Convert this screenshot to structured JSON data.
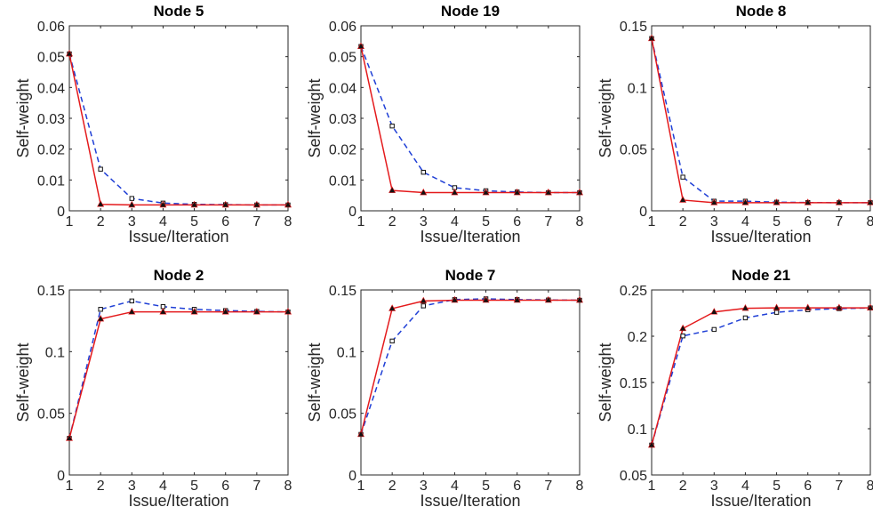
{
  "chart_data": [
    {
      "type": "line",
      "title": "Node 5",
      "xlabel": "Issue/Iteration",
      "ylabel": "Self-weight",
      "x": [
        1,
        2,
        3,
        4,
        5,
        6,
        7,
        8
      ],
      "xlim": [
        1,
        8
      ],
      "ylim": [
        0,
        0.06
      ],
      "yticks": [
        0,
        0.01,
        0.02,
        0.03,
        0.04,
        0.05,
        0.06
      ],
      "ytick_labels": [
        "0",
        "0.01",
        "0.02",
        "0.03",
        "0.04",
        "0.05",
        "0.06"
      ],
      "series": [
        {
          "color": "#e41a1c",
          "line": "solid",
          "marker": "triangle",
          "values": [
            0.0509,
            0.0021,
            0.0019,
            0.0019,
            0.0019,
            0.0019,
            0.0019,
            0.0019
          ]
        },
        {
          "color": "#1f3fd6",
          "line": "dashed",
          "marker": "square",
          "values": [
            0.0509,
            0.0135,
            0.004,
            0.0025,
            0.0021,
            0.002,
            0.0019,
            0.0019
          ]
        }
      ]
    },
    {
      "type": "line",
      "title": "Node 19",
      "xlabel": "Issue/Iteration",
      "ylabel": "Self-weight",
      "x": [
        1,
        2,
        3,
        4,
        5,
        6,
        7,
        8
      ],
      "xlim": [
        1,
        8
      ],
      "ylim": [
        0,
        0.06
      ],
      "yticks": [
        0,
        0.01,
        0.02,
        0.03,
        0.04,
        0.05,
        0.06
      ],
      "ytick_labels": [
        "0",
        "0.01",
        "0.02",
        "0.03",
        "0.04",
        "0.05",
        "0.06"
      ],
      "series": [
        {
          "color": "#e41a1c",
          "line": "solid",
          "marker": "triangle",
          "values": [
            0.0533,
            0.0066,
            0.0059,
            0.0059,
            0.0059,
            0.0059,
            0.0059,
            0.0059
          ]
        },
        {
          "color": "#1f3fd6",
          "line": "dashed",
          "marker": "square",
          "values": [
            0.0533,
            0.0275,
            0.0125,
            0.0075,
            0.0065,
            0.0061,
            0.0059,
            0.0059
          ]
        }
      ]
    },
    {
      "type": "line",
      "title": "Node 8",
      "xlabel": "Issue/Iteration",
      "ylabel": "Self-weight",
      "x": [
        1,
        2,
        3,
        4,
        5,
        6,
        7,
        8
      ],
      "xlim": [
        1,
        8
      ],
      "ylim": [
        0,
        0.15
      ],
      "yticks": [
        0,
        0.05,
        0.1,
        0.15
      ],
      "ytick_labels": [
        "0",
        "0.05",
        "0.1",
        "0.15"
      ],
      "series": [
        {
          "color": "#e41a1c",
          "line": "solid",
          "marker": "triangle",
          "values": [
            0.1397,
            0.0087,
            0.0066,
            0.0066,
            0.0066,
            0.0066,
            0.0066,
            0.0066
          ]
        },
        {
          "color": "#1f3fd6",
          "line": "dashed",
          "marker": "square",
          "values": [
            0.1397,
            0.0273,
            0.0078,
            0.0078,
            0.007,
            0.0067,
            0.0066,
            0.0066
          ]
        }
      ]
    },
    {
      "type": "line",
      "title": "Node 2",
      "xlabel": "Issue/Iteration",
      "ylabel": "Self-weight",
      "x": [
        1,
        2,
        3,
        4,
        5,
        6,
        7,
        8
      ],
      "xlim": [
        1,
        8
      ],
      "ylim": [
        0,
        0.15
      ],
      "yticks": [
        0,
        0.05,
        0.1,
        0.15
      ],
      "ytick_labels": [
        "0",
        "0.05",
        "0.1",
        "0.15"
      ],
      "series": [
        {
          "color": "#e41a1c",
          "line": "solid",
          "marker": "triangle",
          "values": [
            0.0297,
            0.1265,
            0.1322,
            0.1322,
            0.1322,
            0.1322,
            0.1322,
            0.1322
          ]
        },
        {
          "color": "#1f3fd6",
          "line": "dashed",
          "marker": "square",
          "values": [
            0.0297,
            0.1343,
            0.1411,
            0.1365,
            0.1343,
            0.1333,
            0.1326,
            0.1322
          ]
        }
      ]
    },
    {
      "type": "line",
      "title": "Node 7",
      "xlabel": "Issue/Iteration",
      "ylabel": "Self-weight",
      "x": [
        1,
        2,
        3,
        4,
        5,
        6,
        7,
        8
      ],
      "xlim": [
        1,
        8
      ],
      "ylim": [
        0,
        0.15
      ],
      "yticks": [
        0,
        0.05,
        0.1,
        0.15
      ],
      "ytick_labels": [
        "0",
        "0.05",
        "0.1",
        "0.15"
      ],
      "series": [
        {
          "color": "#e41a1c",
          "line": "solid",
          "marker": "triangle",
          "values": [
            0.0329,
            0.1349,
            0.1411,
            0.1417,
            0.1417,
            0.1417,
            0.1417,
            0.1417
          ]
        },
        {
          "color": "#1f3fd6",
          "line": "dashed",
          "marker": "square",
          "values": [
            0.0329,
            0.1086,
            0.1371,
            0.1422,
            0.1428,
            0.1422,
            0.1419,
            0.1417
          ]
        }
      ]
    },
    {
      "type": "line",
      "title": "Node 21",
      "xlabel": "Issue/Iteration",
      "ylabel": "Self-weight",
      "x": [
        1,
        2,
        3,
        4,
        5,
        6,
        7,
        8
      ],
      "xlim": [
        1,
        8
      ],
      "ylim": [
        0.05,
        0.25
      ],
      "yticks": [
        0.05,
        0.1,
        0.15,
        0.2,
        0.25
      ],
      "ytick_labels": [
        "0.05",
        "0.1",
        "0.15",
        "0.2",
        "0.25"
      ],
      "series": [
        {
          "color": "#e41a1c",
          "line": "solid",
          "marker": "triangle",
          "values": [
            0.0823,
            0.2083,
            0.2262,
            0.2302,
            0.2306,
            0.2306,
            0.2306,
            0.2306
          ]
        },
        {
          "color": "#1f3fd6",
          "line": "dashed",
          "marker": "square",
          "values": [
            0.0823,
            0.2003,
            0.2073,
            0.2198,
            0.2258,
            0.2286,
            0.2298,
            0.2306
          ]
        }
      ]
    }
  ]
}
